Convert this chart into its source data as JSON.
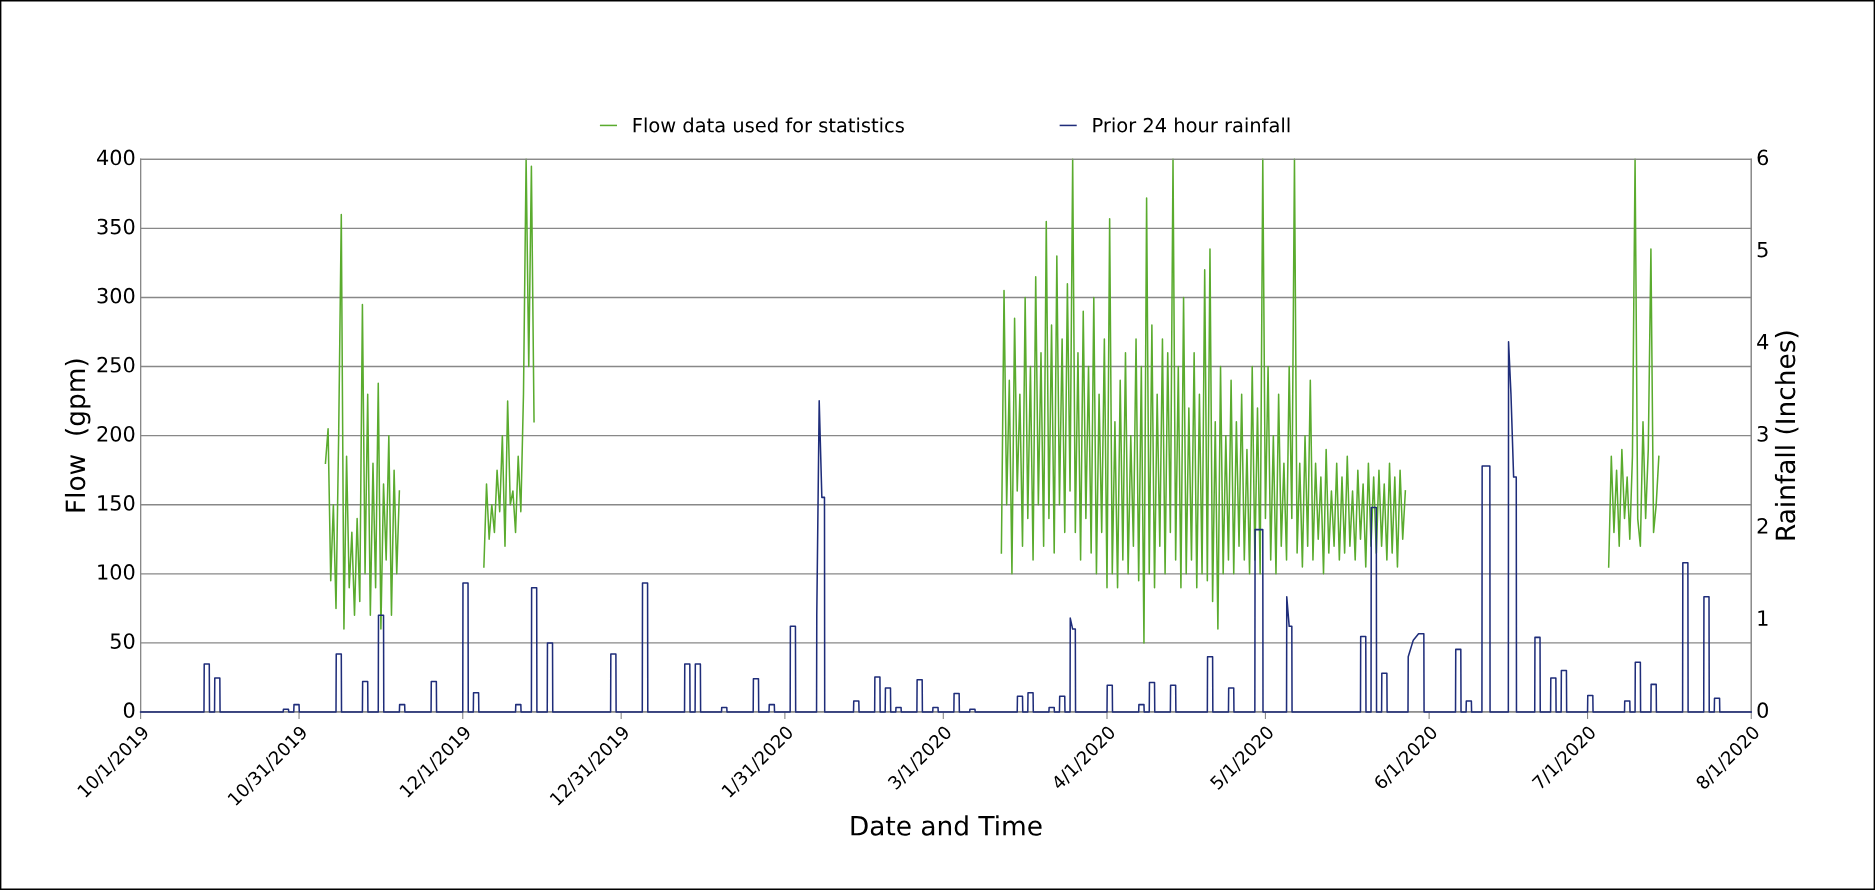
{
  "chart_data": {
    "type": "line",
    "xlabel": "Date and Time",
    "ylabel": "Flow  (gpm)",
    "y2label": "Rainfall (Inches)",
    "xlim": [
      "2019-10-01",
      "2020-08-01"
    ],
    "xticks": [
      {
        "value": "2019-10-01",
        "label": "10/1/2019"
      },
      {
        "value": "2019-10-31",
        "label": "10/31/2019"
      },
      {
        "value": "2019-12-01",
        "label": "12/1/2019"
      },
      {
        "value": "2019-12-31",
        "label": "12/31/2019"
      },
      {
        "value": "2020-01-31",
        "label": "1/31/2020"
      },
      {
        "value": "2020-03-01",
        "label": "3/1/2020"
      },
      {
        "value": "2020-04-01",
        "label": "4/1/2020"
      },
      {
        "value": "2020-05-01",
        "label": "5/1/2020"
      },
      {
        "value": "2020-06-01",
        "label": "6/1/2020"
      },
      {
        "value": "2020-07-01",
        "label": "7/1/2020"
      },
      {
        "value": "2020-08-01",
        "label": "8/1/2020"
      }
    ],
    "ylim": [
      0,
      400
    ],
    "yticks": [
      0,
      50,
      100,
      150,
      200,
      250,
      300,
      350,
      400
    ],
    "y2lim": [
      0,
      6
    ],
    "y2ticks": [
      0,
      1,
      2,
      3,
      4,
      5,
      6
    ],
    "grid": "y",
    "legend": "top",
    "marker": "none",
    "line_style": "solid",
    "series": [
      {
        "name": "Flow data used for statistics",
        "color": "#5aab2e",
        "x": [
          "2019-11-05T00:00",
          "2019-11-05T12:00",
          "2019-11-06T00:00",
          "2019-11-06T12:00",
          "2019-11-07T00:00",
          "2019-11-07T12:00",
          "2019-11-08T00:00",
          "2019-11-08T12:00",
          "2019-11-09T00:00",
          "2019-11-09T12:00",
          "2019-11-10T00:00",
          "2019-11-10T12:00",
          "2019-11-11T00:00",
          "2019-11-11T12:00",
          "2019-11-12T00:00",
          "2019-11-12T12:00",
          "2019-11-13T00:00",
          "2019-11-13T12:00",
          "2019-11-14T00:00",
          "2019-11-14T12:00",
          "2019-11-15T00:00",
          "2019-11-15T12:00",
          "2019-11-16T00:00",
          "2019-11-16T12:00",
          "2019-11-17T00:00",
          "2019-11-17T12:00",
          "2019-11-18T00:00",
          "2019-11-18T12:00",
          "2019-11-19T00:00",
          "2019-11-25T00:00",
          "2019-12-05T00:00",
          "2019-12-05T12:00",
          "2019-12-06T00:00",
          "2019-12-06T12:00",
          "2019-12-07T00:00",
          "2019-12-07T12:00",
          "2019-12-08T00:00",
          "2019-12-08T12:00",
          "2019-12-09T00:00",
          "2019-12-09T12:00",
          "2019-12-10T00:00",
          "2019-12-10T12:00",
          "2019-12-11T00:00",
          "2019-12-11T12:00",
          "2019-12-12T00:00",
          "2019-12-12T12:00",
          "2019-12-13T00:00",
          "2019-12-13T12:00",
          "2019-12-14T00:00",
          "2019-12-14T12:00",
          "2019-12-20T00:00",
          "2020-03-12T00:00",
          "2020-03-12T12:00",
          "2020-03-13T00:00",
          "2020-03-13T12:00",
          "2020-03-14T00:00",
          "2020-03-14T12:00",
          "2020-03-15T00:00",
          "2020-03-15T12:00",
          "2020-03-16T00:00",
          "2020-03-16T12:00",
          "2020-03-17T00:00",
          "2020-03-17T12:00",
          "2020-03-18T00:00",
          "2020-03-18T12:00",
          "2020-03-19T00:00",
          "2020-03-19T12:00",
          "2020-03-20T00:00",
          "2020-03-20T12:00",
          "2020-03-21T00:00",
          "2020-03-21T12:00",
          "2020-03-22T00:00",
          "2020-03-22T12:00",
          "2020-03-23T00:00",
          "2020-03-23T12:00",
          "2020-03-24T00:00",
          "2020-03-24T12:00",
          "2020-03-25T00:00",
          "2020-03-25T12:00",
          "2020-03-26T00:00",
          "2020-03-26T12:00",
          "2020-03-27T00:00",
          "2020-03-27T12:00",
          "2020-03-28T00:00",
          "2020-03-28T12:00",
          "2020-03-29T00:00",
          "2020-03-29T12:00",
          "2020-03-30T00:00",
          "2020-03-30T12:00",
          "2020-03-31T00:00",
          "2020-03-31T12:00",
          "2020-04-01T00:00",
          "2020-04-01T12:00",
          "2020-04-02T00:00",
          "2020-04-02T12:00",
          "2020-04-03T00:00",
          "2020-04-03T12:00",
          "2020-04-04T00:00",
          "2020-04-04T12:00",
          "2020-04-05T00:00",
          "2020-04-05T12:00",
          "2020-04-06T00:00",
          "2020-04-06T12:00",
          "2020-04-07T00:00",
          "2020-04-07T12:00",
          "2020-04-08T00:00",
          "2020-04-08T12:00",
          "2020-04-09T00:00",
          "2020-04-09T12:00",
          "2020-04-10T00:00",
          "2020-04-10T12:00",
          "2020-04-11T00:00",
          "2020-04-11T12:00",
          "2020-04-12T00:00",
          "2020-04-12T12:00",
          "2020-04-13T00:00",
          "2020-04-13T12:00",
          "2020-04-14T00:00",
          "2020-04-14T12:00",
          "2020-04-15T00:00",
          "2020-04-15T12:00",
          "2020-04-16T00:00",
          "2020-04-16T12:00",
          "2020-04-17T00:00",
          "2020-04-17T12:00",
          "2020-04-18T00:00",
          "2020-04-18T12:00",
          "2020-04-19T00:00",
          "2020-04-19T12:00",
          "2020-04-20T00:00",
          "2020-04-20T12:00",
          "2020-04-21T00:00",
          "2020-04-21T12:00",
          "2020-04-22T00:00",
          "2020-04-22T12:00",
          "2020-04-23T00:00",
          "2020-04-23T12:00",
          "2020-04-24T00:00",
          "2020-04-24T12:00",
          "2020-04-25T00:00",
          "2020-04-25T12:00",
          "2020-04-26T00:00",
          "2020-04-26T12:00",
          "2020-04-27T00:00",
          "2020-04-27T12:00",
          "2020-04-28T00:00",
          "2020-04-28T12:00",
          "2020-04-29T00:00",
          "2020-04-29T12:00",
          "2020-04-30T00:00",
          "2020-04-30T12:00",
          "2020-05-01T00:00",
          "2020-05-01T12:00",
          "2020-05-02T00:00",
          "2020-05-02T12:00",
          "2020-05-03T00:00",
          "2020-05-03T12:00",
          "2020-05-04T00:00",
          "2020-05-04T12:00",
          "2020-05-05T00:00",
          "2020-05-05T12:00",
          "2020-05-06T00:00",
          "2020-05-06T12:00",
          "2020-05-07T00:00",
          "2020-05-07T12:00",
          "2020-05-08T00:00",
          "2020-05-08T12:00",
          "2020-05-09T00:00",
          "2020-05-09T12:00",
          "2020-05-10T00:00",
          "2020-05-10T12:00",
          "2020-05-11T00:00",
          "2020-05-11T12:00",
          "2020-05-12T00:00",
          "2020-05-12T12:00",
          "2020-05-13T00:00",
          "2020-05-13T12:00",
          "2020-05-14T00:00",
          "2020-05-14T12:00",
          "2020-05-15T00:00",
          "2020-05-15T12:00",
          "2020-05-16T00:00",
          "2020-05-16T12:00",
          "2020-05-17T00:00",
          "2020-05-17T12:00",
          "2020-05-18T00:00",
          "2020-05-18T12:00",
          "2020-05-19T00:00",
          "2020-05-19T12:00",
          "2020-05-20T00:00",
          "2020-05-20T12:00",
          "2020-05-21T00:00",
          "2020-05-21T12:00",
          "2020-05-22T00:00",
          "2020-05-22T12:00",
          "2020-05-23T00:00",
          "2020-05-23T12:00",
          "2020-05-24T00:00",
          "2020-05-24T12:00",
          "2020-05-25T00:00",
          "2020-05-25T12:00",
          "2020-05-26T00:00",
          "2020-05-26T12:00",
          "2020-05-27T00:00",
          "2020-05-27T12:00",
          "2020-06-15T00:00",
          "2020-07-05T00:00",
          "2020-07-05T12:00",
          "2020-07-06T00:00",
          "2020-07-06T12:00",
          "2020-07-07T00:00",
          "2020-07-07T12:00",
          "2020-07-08T00:00",
          "2020-07-08T12:00",
          "2020-07-09T00:00",
          "2020-07-09T12:00",
          "2020-07-10T00:00",
          "2020-07-10T12:00",
          "2020-07-11T00:00",
          "2020-07-11T12:00",
          "2020-07-12T00:00",
          "2020-07-12T12:00",
          "2020-07-13T00:00",
          "2020-07-13T12:00",
          "2020-07-14T00:00",
          "2020-07-14T12:00"
        ],
        "values": [
          180,
          205,
          95,
          150,
          75,
          200,
          360,
          60,
          185,
          90,
          130,
          70,
          140,
          80,
          295,
          100,
          230,
          70,
          180,
          90,
          238,
          60,
          165,
          110,
          200,
          70,
          175,
          100,
          160,
          null,
          105,
          165,
          125,
          150,
          130,
          175,
          145,
          200,
          120,
          225,
          150,
          160,
          130,
          185,
          145,
          230,
          400,
          250,
          395,
          210,
          null,
          115,
          305,
          150,
          240,
          100,
          285,
          160,
          230,
          120,
          300,
          140,
          250,
          110,
          315,
          150,
          260,
          120,
          355,
          140,
          280,
          115,
          330,
          150,
          270,
          130,
          310,
          160,
          400,
          130,
          260,
          110,
          290,
          140,
          250,
          115,
          300,
          100,
          230,
          130,
          270,
          90,
          357,
          100,
          210,
          90,
          240,
          110,
          260,
          100,
          200,
          120,
          270,
          95,
          250,
          50,
          372,
          100,
          280,
          90,
          230,
          120,
          270,
          100,
          260,
          130,
          400,
          110,
          250,
          90,
          300,
          100,
          220,
          110,
          260,
          90,
          230,
          100,
          320,
          95,
          335,
          80,
          210,
          60,
          250,
          100,
          200,
          110,
          240,
          100,
          210,
          120,
          230,
          110,
          190,
          100,
          250,
          110,
          220,
          100,
          400,
          140,
          250,
          110,
          200,
          100,
          230,
          120,
          180,
          110,
          250,
          140,
          400,
          115,
          180,
          105,
          200,
          120,
          240,
          110,
          180,
          125,
          170,
          100,
          190,
          115,
          160,
          120,
          180,
          110,
          170,
          115,
          185,
          120,
          160,
          110,
          175,
          125,
          165,
          105,
          180,
          120,
          170,
          115,
          175,
          120,
          165,
          110,
          180,
          115,
          170,
          105,
          175,
          125,
          160,
          null,
          105,
          185,
          130,
          175,
          120,
          190,
          140,
          170,
          125,
          185,
          400,
          140,
          120,
          210,
          140,
          190,
          335,
          130,
          150,
          185
        ]
      },
      {
        "name": "Prior 24 hour rainfall",
        "color": "#1f2d7a",
        "axis": "y2",
        "x": [
          "2019-10-01T00:00",
          "2019-10-13T00:00",
          "2019-10-13T01:00",
          "2019-10-14T00:00",
          "2019-10-14T01:00",
          "2019-10-15T00:00",
          "2019-10-15T01:00",
          "2019-10-16T00:00",
          "2019-10-16T01:00",
          "2019-10-28T00:00",
          "2019-10-28T01:00",
          "2019-10-29T00:00",
          "2019-10-29T01:00",
          "2019-10-30T00:00",
          "2019-10-30T01:00",
          "2019-10-31T00:00",
          "2019-10-31T01:00",
          "2019-11-07T00:00",
          "2019-11-07T01:00",
          "2019-11-08T00:00",
          "2019-11-08T01:00",
          "2019-11-12T00:00",
          "2019-11-12T01:00",
          "2019-11-13T00:00",
          "2019-11-13T01:00",
          "2019-11-15T00:00",
          "2019-11-15T01:00",
          "2019-11-16T00:00",
          "2019-11-16T01:00",
          "2019-11-19T00:00",
          "2019-11-19T01:00",
          "2019-11-20T00:00",
          "2019-11-20T01:00",
          "2019-11-25T00:00",
          "2019-11-25T01:00",
          "2019-11-26T00:00",
          "2019-11-26T01:00",
          "2019-12-01T00:00",
          "2019-12-01T01:00",
          "2019-12-02T00:00",
          "2019-12-02T01:00",
          "2019-12-03T00:00",
          "2019-12-03T01:00",
          "2019-12-04T00:00",
          "2019-12-04T01:00",
          "2019-12-11T00:00",
          "2019-12-11T01:00",
          "2019-12-12T00:00",
          "2019-12-12T01:00",
          "2019-12-14T00:00",
          "2019-12-14T01:00",
          "2019-12-15T00:00",
          "2019-12-15T01:00",
          "2019-12-17T00:00",
          "2019-12-17T01:00",
          "2019-12-18T00:00",
          "2019-12-18T01:00",
          "2019-12-29T00:00",
          "2019-12-29T01:00",
          "2019-12-30T00:00",
          "2019-12-30T01:00",
          "2020-01-04T00:00",
          "2020-01-04T01:00",
          "2020-01-05T00:00",
          "2020-01-05T01:00",
          "2020-01-12T00:00",
          "2020-01-12T01:00",
          "2020-01-13T00:00",
          "2020-01-13T01:00",
          "2020-01-14T00:00",
          "2020-01-14T01:00",
          "2020-01-15T00:00",
          "2020-01-15T01:00",
          "2020-01-19T00:00",
          "2020-01-19T01:00",
          "2020-01-20T00:00",
          "2020-01-20T01:00",
          "2020-01-25T00:00",
          "2020-01-25T01:00",
          "2020-01-26T00:00",
          "2020-01-26T01:00",
          "2020-01-28T00:00",
          "2020-01-28T01:00",
          "2020-01-29T00:00",
          "2020-01-29T01:00",
          "2020-02-01T00:00",
          "2020-02-01T01:00",
          "2020-02-02T00:00",
          "2020-02-02T01:00",
          "2020-02-06T00:00",
          "2020-02-06T01:00",
          "2020-02-06T12:00",
          "2020-02-07T00:00",
          "2020-02-07T12:00",
          "2020-02-07T13:00",
          "2020-02-13T00:00",
          "2020-02-13T01:00",
          "2020-02-14T00:00",
          "2020-02-14T01:00",
          "2020-02-17T00:00",
          "2020-02-17T01:00",
          "2020-02-18T00:00",
          "2020-02-18T01:00",
          "2020-02-19T00:00",
          "2020-02-19T01:00",
          "2020-02-20T00:00",
          "2020-02-20T01:00",
          "2020-02-21T00:00",
          "2020-02-21T01:00",
          "2020-02-22T00:00",
          "2020-02-22T01:00",
          "2020-02-25T00:00",
          "2020-02-25T01:00",
          "2020-02-26T00:00",
          "2020-02-26T01:00",
          "2020-02-28T00:00",
          "2020-02-28T01:00",
          "2020-02-29T00:00",
          "2020-02-29T01:00",
          "2020-03-03T00:00",
          "2020-03-03T01:00",
          "2020-03-04T00:00",
          "2020-03-04T01:00",
          "2020-03-06T00:00",
          "2020-03-06T01:00",
          "2020-03-07T00:00",
          "2020-03-07T01:00",
          "2020-03-15T00:00",
          "2020-03-15T01:00",
          "2020-03-16T00:00",
          "2020-03-16T01:00",
          "2020-03-17T00:00",
          "2020-03-17T01:00",
          "2020-03-18T00:00",
          "2020-03-18T01:00",
          "2020-03-21T00:00",
          "2020-03-21T01:00",
          "2020-03-22T00:00",
          "2020-03-22T01:00",
          "2020-03-23T00:00",
          "2020-03-23T01:00",
          "2020-03-24T00:00",
          "2020-03-24T01:00",
          "2020-03-25T00:00",
          "2020-03-25T01:00",
          "2020-03-25T12:00",
          "2020-03-26T00:00",
          "2020-03-26T01:00",
          "2020-04-01T00:00",
          "2020-04-01T01:00",
          "2020-04-02T00:00",
          "2020-04-02T01:00",
          "2020-04-07T00:00",
          "2020-04-07T01:00",
          "2020-04-08T00:00",
          "2020-04-08T01:00",
          "2020-04-09T00:00",
          "2020-04-09T01:00",
          "2020-04-10T00:00",
          "2020-04-10T01:00",
          "2020-04-13T00:00",
          "2020-04-13T01:00",
          "2020-04-14T00:00",
          "2020-04-14T01:00",
          "2020-04-20T00:00",
          "2020-04-20T01:00",
          "2020-04-21T00:00",
          "2020-04-21T01:00",
          "2020-04-24T00:00",
          "2020-04-24T01:00",
          "2020-04-25T00:00",
          "2020-04-25T01:00",
          "2020-04-29T00:00",
          "2020-04-29T01:00",
          "2020-04-30T12:00",
          "2020-04-30T13:00",
          "2020-05-05T00:00",
          "2020-05-05T01:00",
          "2020-05-05T12:00",
          "2020-05-06T00:00",
          "2020-05-06T01:00",
          "2020-05-19T00:00",
          "2020-05-19T01:00",
          "2020-05-20T00:00",
          "2020-05-20T01:00",
          "2020-05-21T00:00",
          "2020-05-21T01:00",
          "2020-05-22T00:00",
          "2020-05-22T01:00",
          "2020-05-23T00:00",
          "2020-05-23T01:00",
          "2020-05-24T00:00",
          "2020-05-24T01:00",
          "2020-05-28T00:00",
          "2020-05-28T01:00",
          "2020-05-29T00:00",
          "2020-05-30T00:00",
          "2020-05-31T00:00",
          "2020-05-31T01:00",
          "2020-06-06T00:00",
          "2020-06-06T01:00",
          "2020-06-07T00:00",
          "2020-06-07T01:00",
          "2020-06-08T00:00",
          "2020-06-08T01:00",
          "2020-06-09T00:00",
          "2020-06-09T01:00",
          "2020-06-11T00:00",
          "2020-06-11T01:00",
          "2020-06-12T12:00",
          "2020-06-12T13:00",
          "2020-06-16T00:00",
          "2020-06-16T01:00",
          "2020-06-16T12:00",
          "2020-06-17T00:00",
          "2020-06-17T12:00",
          "2020-06-17T13:00",
          "2020-06-21T00:00",
          "2020-06-21T01:00",
          "2020-06-22T00:00",
          "2020-06-22T01:00",
          "2020-06-24T00:00",
          "2020-06-24T01:00",
          "2020-06-25T00:00",
          "2020-06-25T01:00",
          "2020-06-26T00:00",
          "2020-06-26T01:00",
          "2020-06-27T00:00",
          "2020-06-27T01:00",
          "2020-07-01T00:00",
          "2020-07-01T01:00",
          "2020-07-02T00:00",
          "2020-07-02T01:00",
          "2020-07-08T00:00",
          "2020-07-08T01:00",
          "2020-07-09T00:00",
          "2020-07-09T01:00",
          "2020-07-10T00:00",
          "2020-07-10T01:00",
          "2020-07-11T00:00",
          "2020-07-11T01:00",
          "2020-07-13T00:00",
          "2020-07-13T01:00",
          "2020-07-14T00:00",
          "2020-07-14T01:00",
          "2020-07-19T00:00",
          "2020-07-19T01:00",
          "2020-07-20T00:00",
          "2020-07-20T01:00",
          "2020-07-23T00:00",
          "2020-07-23T01:00",
          "2020-07-24T00:00",
          "2020-07-24T01:00",
          "2020-07-25T00:00",
          "2020-07-25T01:00",
          "2020-07-26T00:00",
          "2020-07-26T01:00",
          "2020-08-01T00:00"
        ],
        "values": [
          0,
          0,
          0.52,
          0.52,
          0,
          0,
          0.37,
          0.37,
          0,
          0,
          0.03,
          0.03,
          0,
          0,
          0.08,
          0.08,
          0,
          0,
          0.63,
          0.63,
          0,
          0,
          0.33,
          0.33,
          0,
          0,
          1.05,
          1.05,
          0,
          0,
          0.08,
          0.08,
          0,
          0,
          0.33,
          0.33,
          0,
          0,
          1.4,
          1.4,
          0,
          0,
          0.21,
          0.21,
          0,
          0,
          0.08,
          0.08,
          0,
          0,
          1.35,
          1.35,
          0,
          0,
          0.75,
          0.75,
          0,
          0,
          0.63,
          0.63,
          0,
          0,
          1.4,
          1.4,
          0,
          0,
          0.52,
          0.52,
          0,
          0,
          0.52,
          0.52,
          0,
          0,
          0.05,
          0.05,
          0,
          0,
          0.36,
          0.36,
          0,
          0,
          0.08,
          0.08,
          0,
          0,
          0.93,
          0.93,
          0,
          0,
          1.05,
          3.38,
          2.33,
          2.33,
          0,
          0,
          0.12,
          0.12,
          0,
          0,
          0.38,
          0.38,
          0,
          0,
          0.26,
          0.26,
          0,
          0,
          0.05,
          0.05,
          0,
          0,
          0.35,
          0.35,
          0,
          0,
          0.05,
          0.05,
          0,
          0,
          0.2,
          0.2,
          0,
          0,
          0.03,
          0.03,
          0,
          0,
          0.17,
          0.17,
          0,
          0,
          0.21,
          0.21,
          0,
          0,
          0.05,
          0.05,
          0,
          0,
          0.17,
          0.17,
          0,
          0,
          1.02,
          0.9,
          0.9,
          0,
          0,
          0.29,
          0.29,
          0,
          0,
          0.08,
          0.08,
          0,
          0,
          0.32,
          0.32,
          0,
          0,
          0.29,
          0.29,
          0,
          0,
          0.6,
          0.6,
          0,
          0,
          0.26,
          0.26,
          0,
          0,
          1.98,
          1.98,
          0,
          0,
          1.25,
          0.93,
          0.93,
          0,
          0,
          0.82,
          0.82,
          0,
          0,
          2.22,
          2.22,
          0,
          0,
          0.42,
          0.42,
          0,
          0,
          0.6,
          0.78,
          0.85,
          0.85,
          0,
          0,
          0.68,
          0.68,
          0,
          0,
          0.12,
          0.12,
          0,
          0,
          2.67,
          2.67,
          0,
          0,
          4.02,
          3.45,
          2.55,
          2.55,
          0,
          0,
          0.81,
          0.81,
          0,
          0,
          0.37,
          0.37,
          0,
          0,
          0.45,
          0.45,
          0,
          0,
          0.18,
          0.18,
          0,
          0,
          0.12,
          0.12,
          0,
          0,
          0.54,
          0.54,
          0,
          0,
          0.3,
          0.3,
          0,
          0,
          1.62,
          1.62,
          0,
          0,
          1.25,
          1.25,
          0,
          0,
          0.15,
          0.15,
          0,
          0
        ]
      }
    ]
  }
}
